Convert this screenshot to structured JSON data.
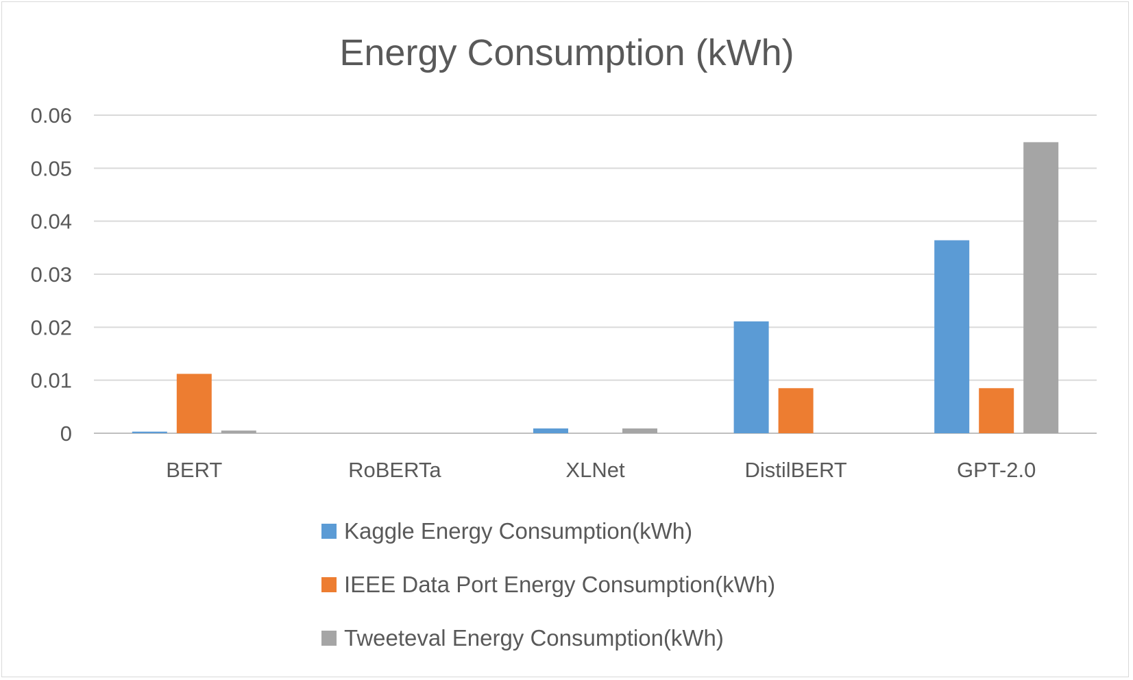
{
  "chart_data": {
    "type": "bar",
    "title": "Energy Consumption (kWh)",
    "xlabel": "",
    "ylabel": "",
    "ylim": [
      0,
      0.06
    ],
    "yticks": [
      "0",
      "0.01",
      "0.02",
      "0.03",
      "0.04",
      "0.05",
      "0.06"
    ],
    "grid": true,
    "legend_position": "bottom",
    "categories": [
      "BERT",
      "RoBERTa",
      "XLNet",
      "DistilBERT",
      "GPT-2.0"
    ],
    "series": [
      {
        "name": "Kaggle Energy Consumption(kWh)",
        "color": "#5b9bd5",
        "values": [
          0.0003,
          0,
          0.0009,
          0.0211,
          0.0364
        ]
      },
      {
        "name": "IEEE Data Port Energy Consumption(kWh)",
        "color": "#ed7d31",
        "values": [
          0.0112,
          0,
          0,
          0.0085,
          0.0085
        ]
      },
      {
        "name": "Tweeteval Energy Consumption(kWh)",
        "color": "#a5a5a5",
        "values": [
          0.0005,
          0,
          0.0009,
          0,
          0.0549
        ]
      }
    ]
  }
}
